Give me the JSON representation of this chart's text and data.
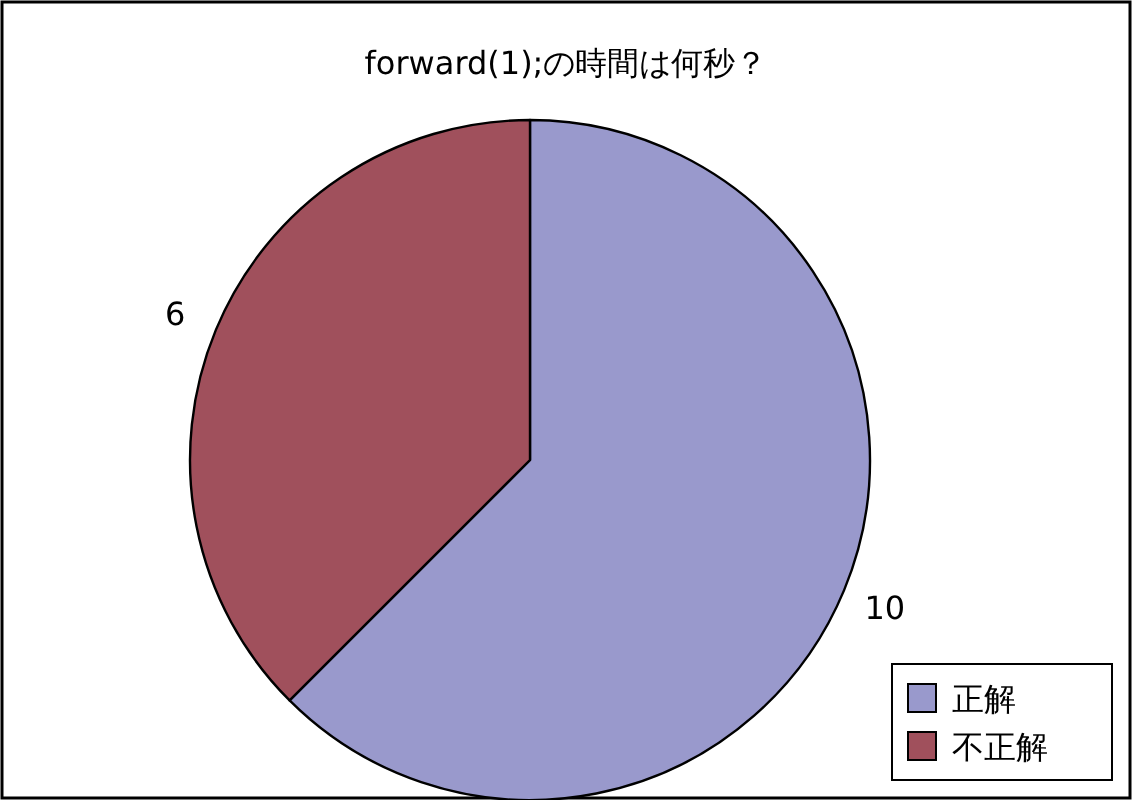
{
  "chart_data": {
    "type": "pie",
    "title": "forward(1);の時間は何秒？",
    "categories": [
      "正解",
      "不正解"
    ],
    "values": [
      10,
      6
    ],
    "colors": [
      "#9999cc",
      "#a0505c"
    ],
    "data_labels": true,
    "legend": "bottom right"
  }
}
